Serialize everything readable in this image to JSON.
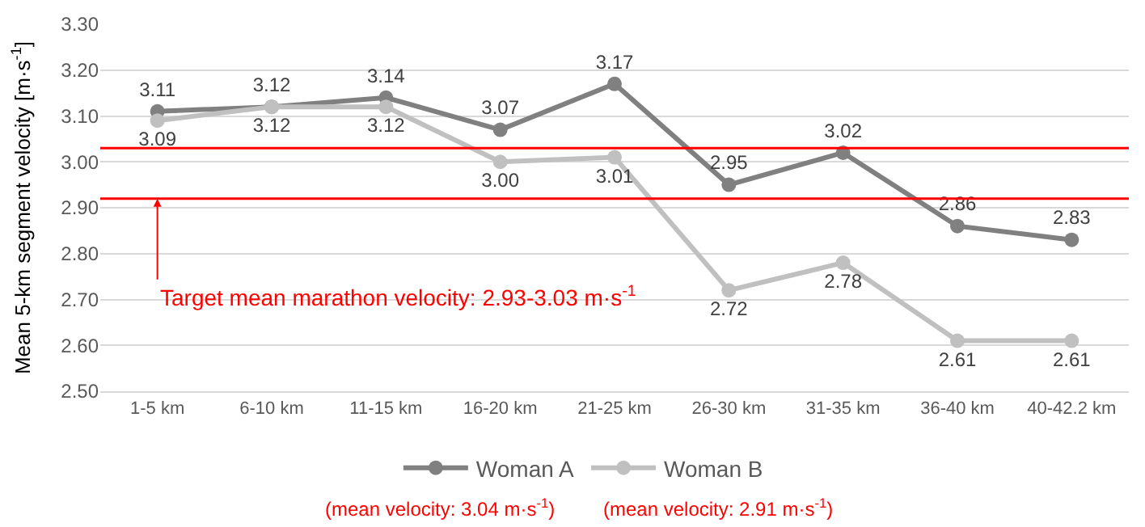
{
  "chart_data": {
    "type": "line",
    "ylabel": "Mean 5-km segment velocity [m·s$^{-1}$]",
    "categories": [
      "1-5 km",
      "6-10 km",
      "11-15 km",
      "16-20 km",
      "21-25 km",
      "26-30 km",
      "31-35 km",
      "36-40 km",
      "40-42.2 km"
    ],
    "series": [
      {
        "name": "Woman A",
        "color": "#808080",
        "values": [
          3.11,
          3.12,
          3.14,
          3.07,
          3.17,
          2.95,
          3.02,
          2.86,
          2.83
        ],
        "value_labels": [
          "3.11",
          "3.12",
          "3.14",
          "3.07",
          "3.17",
          "2.95",
          "3.02",
          "2.86",
          "2.83"
        ]
      },
      {
        "name": "Woman B",
        "color": "#c0c0c0",
        "values": [
          3.09,
          3.12,
          3.12,
          3.0,
          3.01,
          2.72,
          2.78,
          2.61,
          2.61
        ],
        "value_labels": [
          "3.09",
          "3.12",
          "3.12",
          "3.00",
          "3.01",
          "2.72",
          "2.78",
          "2.61",
          "2.61"
        ]
      }
    ],
    "ylim": [
      2.5,
      3.3
    ],
    "yticks": [
      {
        "value": 2.5,
        "label": "2.50"
      },
      {
        "value": 2.6,
        "label": "2.60"
      },
      {
        "value": 2.7,
        "label": "2.70"
      },
      {
        "value": 2.8,
        "label": "2.80"
      },
      {
        "value": 2.9,
        "label": "2.90"
      },
      {
        "value": 3.0,
        "label": "3.00"
      },
      {
        "value": 3.1,
        "label": "3.10"
      },
      {
        "value": 3.2,
        "label": "3.20"
      },
      {
        "value": 3.3,
        "label": "3.30"
      }
    ],
    "ref_lines": [
      {
        "axis": "y",
        "value": 3.03,
        "color": "#ff0000"
      },
      {
        "axis": "y",
        "value": 2.92,
        "color": "#ff0000"
      }
    ],
    "annotations": [
      {
        "text": "Target mean marathon velocity: 2.93-3.03 m·s$^{-1}$",
        "x": "1-5 km",
        "y": 2.92
      },
      "(mean velocity: 3.04 m·s$^{-1}$)",
      "(mean velocity: 2.91 m·s$^{-1}$)"
    ],
    "grid": "y",
    "legend": "bottom",
    "marker": "circle",
    "line_style": "solid"
  }
}
